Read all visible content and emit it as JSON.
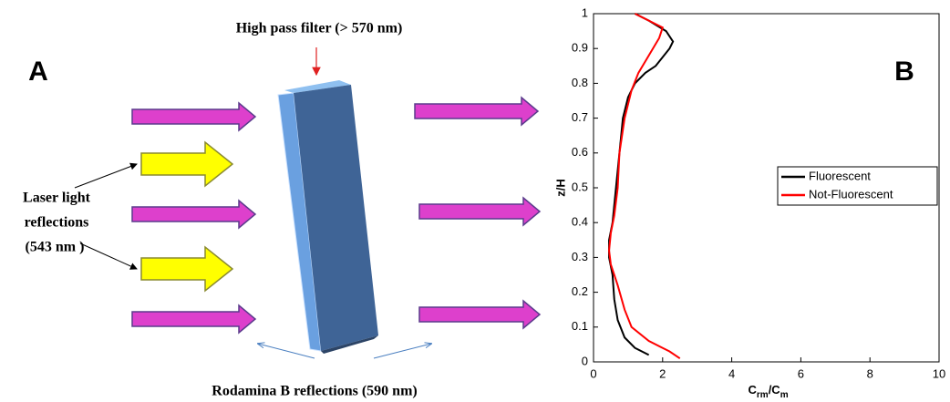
{
  "diagram": {
    "panel_label": "A",
    "filter_label": "High pass filter (> 570 nm)",
    "laser_label": [
      "Laser light",
      "reflections",
      "(543 nm )"
    ],
    "rodamina_label": "Rodamina B reflections (590 nm)"
  },
  "chart_data": {
    "type": "line",
    "panel_label": "B",
    "xlabel_parts": [
      "C",
      "rm",
      "/C",
      "m"
    ],
    "ylabel": "z/H",
    "xlim": [
      0,
      10
    ],
    "xticks": [
      0,
      2,
      4,
      6,
      8,
      10
    ],
    "ylim": [
      0,
      1
    ],
    "yticks": [
      0,
      0.1,
      0.2,
      0.3,
      0.4,
      0.5,
      0.6,
      0.7,
      0.8,
      0.9,
      1
    ],
    "legend": "right",
    "series": [
      {
        "name": "Fluorescent",
        "color": "#000000",
        "x": [
          1.6,
          1.2,
          0.9,
          0.7,
          0.6,
          0.55,
          0.45,
          0.45,
          0.55,
          0.65,
          0.75,
          0.85,
          1.0,
          1.2,
          1.5,
          1.8,
          2.2,
          2.3,
          2.1,
          1.6,
          1.2
        ],
        "values": [
          0.02,
          0.04,
          0.07,
          0.12,
          0.18,
          0.25,
          0.3,
          0.35,
          0.4,
          0.5,
          0.6,
          0.7,
          0.76,
          0.8,
          0.83,
          0.85,
          0.9,
          0.92,
          0.95,
          0.98,
          1.0
        ]
      },
      {
        "name": "Not-Fluorescent",
        "color": "#ff0000",
        "x": [
          2.5,
          2.2,
          1.6,
          1.1,
          0.9,
          0.7,
          0.5,
          0.45,
          0.5,
          0.6,
          0.7,
          0.75,
          0.9,
          1.1,
          1.3,
          1.6,
          1.9,
          2.0,
          1.6,
          1.2
        ],
        "values": [
          0.01,
          0.03,
          0.06,
          0.1,
          0.15,
          0.22,
          0.28,
          0.32,
          0.37,
          0.42,
          0.5,
          0.6,
          0.7,
          0.78,
          0.83,
          0.88,
          0.93,
          0.96,
          0.98,
          1.0
        ]
      }
    ]
  }
}
